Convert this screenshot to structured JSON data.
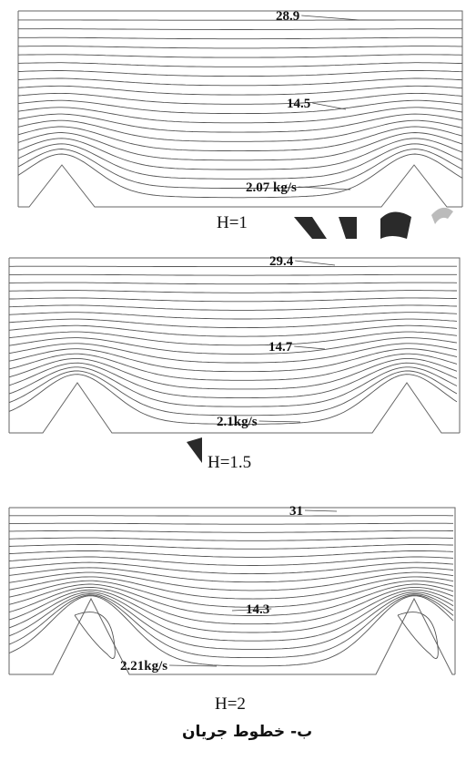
{
  "figure": {
    "title": "ب- خطوط جریان",
    "panels": [
      {
        "caption": "H=1",
        "labels": [
          "28.9",
          "14.5",
          "2.07 kg/s"
        ],
        "vortex": false
      },
      {
        "caption": "H=1.5",
        "labels": [
          "29.4",
          "14.7",
          "2.1kg/s"
        ],
        "vortex": false
      },
      {
        "caption": "H=2",
        "labels": [
          "31",
          "14.3",
          "2.21kg/s"
        ],
        "vortex": true
      }
    ]
  },
  "colors": {
    "lines": "#555555",
    "watermark": "#2a2a2a"
  }
}
